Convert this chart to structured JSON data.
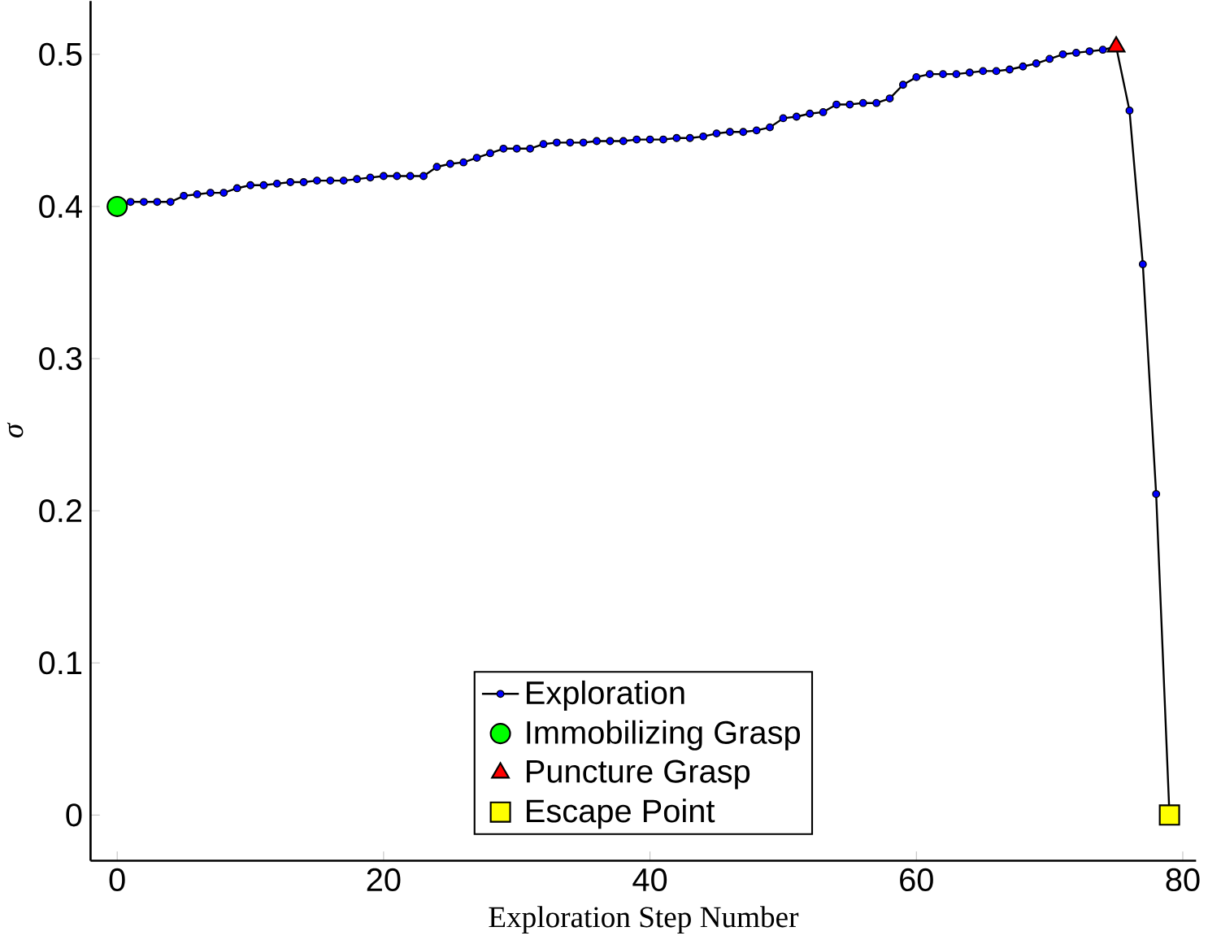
{
  "chart_data": {
    "type": "line",
    "xlabel": "Exploration Step Number",
    "ylabel": "σ",
    "xlim": [
      -2,
      81
    ],
    "ylim": [
      -0.03,
      0.535
    ],
    "xticks": [
      0,
      20,
      40,
      60,
      80
    ],
    "yticks": [
      0,
      0.1,
      0.2,
      0.3,
      0.4,
      0.5
    ],
    "grid": false,
    "legend": "bottom",
    "series": [
      {
        "name": "Exploration",
        "color": "#000000",
        "marker": "circle",
        "line_style": "solid",
        "x": [
          0,
          1,
          2,
          3,
          4,
          5,
          6,
          7,
          8,
          9,
          10,
          11,
          12,
          13,
          14,
          15,
          16,
          17,
          18,
          19,
          20,
          21,
          22,
          23,
          24,
          25,
          26,
          27,
          28,
          29,
          30,
          31,
          32,
          33,
          34,
          35,
          36,
          37,
          38,
          39,
          40,
          41,
          42,
          43,
          44,
          45,
          46,
          47,
          48,
          49,
          50,
          51,
          52,
          53,
          54,
          55,
          56,
          57,
          58,
          59,
          60,
          61,
          62,
          63,
          64,
          65,
          66,
          67,
          68,
          69,
          70,
          71,
          72,
          73,
          74,
          75,
          76,
          77,
          78,
          79
        ],
        "values": [
          0.4,
          0.403,
          0.403,
          0.403,
          0.403,
          0.407,
          0.408,
          0.409,
          0.409,
          0.412,
          0.414,
          0.414,
          0.415,
          0.416,
          0.416,
          0.417,
          0.417,
          0.417,
          0.418,
          0.419,
          0.42,
          0.42,
          0.42,
          0.42,
          0.426,
          0.428,
          0.429,
          0.432,
          0.435,
          0.438,
          0.438,
          0.438,
          0.441,
          0.442,
          0.442,
          0.442,
          0.443,
          0.443,
          0.443,
          0.444,
          0.444,
          0.444,
          0.445,
          0.445,
          0.446,
          0.448,
          0.449,
          0.449,
          0.45,
          0.452,
          0.458,
          0.459,
          0.461,
          0.462,
          0.467,
          0.467,
          0.468,
          0.468,
          0.471,
          0.48,
          0.485,
          0.487,
          0.487,
          0.487,
          0.488,
          0.489,
          0.489,
          0.49,
          0.492,
          0.494,
          0.497,
          0.5,
          0.501,
          0.502,
          0.503,
          0.505,
          0.463,
          0.362,
          0.211,
          0
        ]
      },
      {
        "name": "Immobilizing Grasp",
        "type": "scatter",
        "color": "#00ff00",
        "marker": "circle",
        "x": [
          0
        ],
        "values": [
          0.4
        ]
      },
      {
        "name": "Puncture Grasp",
        "type": "scatter",
        "color": "#ff0000",
        "marker": "triangle",
        "x": [
          75
        ],
        "values": [
          0.505
        ]
      },
      {
        "name": "Escape Point",
        "type": "scatter",
        "color": "#ffff00",
        "marker": "square",
        "x": [
          79
        ],
        "values": [
          0
        ]
      }
    ]
  }
}
